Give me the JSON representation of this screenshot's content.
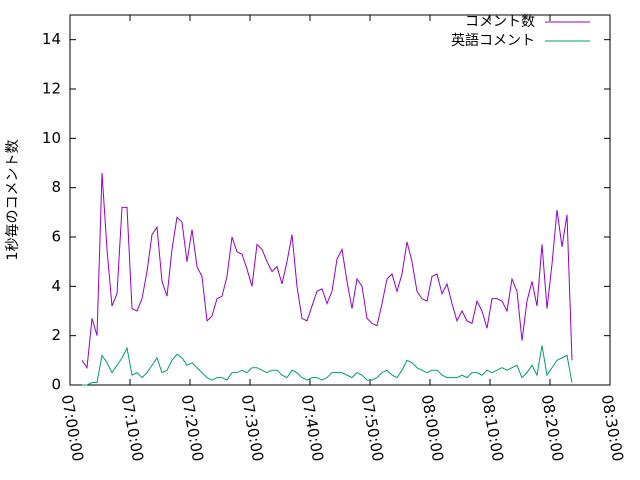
{
  "chart_data": {
    "type": "line",
    "ylabel": "1秒毎のコメント数",
    "x": [
      "07:02:00",
      "07:02:50",
      "07:03:40",
      "07:04:30",
      "07:05:20",
      "07:06:10",
      "07:07:00",
      "07:07:50",
      "07:08:40",
      "07:09:30",
      "07:10:20",
      "07:11:10",
      "07:12:00",
      "07:12:50",
      "07:13:40",
      "07:14:30",
      "07:15:20",
      "07:16:10",
      "07:17:00",
      "07:17:50",
      "07:18:40",
      "07:19:30",
      "07:20:20",
      "07:21:10",
      "07:22:00",
      "07:22:50",
      "07:23:40",
      "07:24:30",
      "07:25:20",
      "07:26:10",
      "07:27:00",
      "07:27:50",
      "07:28:40",
      "07:29:30",
      "07:30:20",
      "07:31:10",
      "07:32:00",
      "07:32:50",
      "07:33:40",
      "07:34:30",
      "07:35:20",
      "07:36:10",
      "07:37:00",
      "07:37:50",
      "07:38:40",
      "07:39:30",
      "07:40:20",
      "07:41:10",
      "07:42:00",
      "07:42:50",
      "07:43:40",
      "07:44:30",
      "07:45:20",
      "07:46:10",
      "07:47:00",
      "07:47:50",
      "07:48:40",
      "07:49:30",
      "07:50:20",
      "07:51:10",
      "07:52:00",
      "07:52:50",
      "07:53:40",
      "07:54:30",
      "07:55:20",
      "07:56:10",
      "07:57:00",
      "07:57:50",
      "07:58:40",
      "07:59:30",
      "08:00:20",
      "08:01:10",
      "08:02:00",
      "08:02:50",
      "08:03:40",
      "08:04:30",
      "08:05:20",
      "08:06:10",
      "08:07:00",
      "08:07:50",
      "08:08:40",
      "08:09:30",
      "08:10:20",
      "08:11:10",
      "08:12:00",
      "08:12:50",
      "08:13:40",
      "08:14:30",
      "08:15:20",
      "08:16:10",
      "08:17:00",
      "08:17:50",
      "08:18:40",
      "08:19:30",
      "08:20:20",
      "08:21:10",
      "08:22:00",
      "08:22:50",
      "08:23:40"
    ],
    "series": [
      {
        "name": "コメント数",
        "color": "#9400d3",
        "values": [
          1.0,
          0.7,
          2.7,
          2.0,
          8.6,
          5.5,
          3.2,
          3.7,
          7.2,
          7.2,
          3.1,
          3.0,
          3.5,
          4.6,
          6.1,
          6.4,
          4.2,
          3.6,
          5.5,
          6.8,
          6.6,
          5.0,
          6.3,
          4.8,
          4.4,
          2.6,
          2.8,
          3.5,
          3.6,
          4.4,
          6.0,
          5.4,
          5.3,
          4.7,
          4.0,
          5.7,
          5.5,
          5.0,
          4.6,
          4.8,
          4.1,
          5.0,
          6.1,
          4.0,
          2.7,
          2.6,
          3.2,
          3.8,
          3.9,
          3.3,
          3.8,
          5.1,
          5.5,
          4.2,
          3.1,
          4.3,
          4.0,
          2.7,
          2.5,
          2.4,
          3.3,
          4.3,
          4.5,
          3.8,
          4.5,
          5.8,
          5.0,
          3.8,
          3.5,
          3.4,
          4.4,
          4.5,
          3.7,
          4.1,
          3.3,
          2.6,
          3.0,
          2.6,
          2.5,
          3.4,
          3.0,
          2.3,
          3.5,
          3.5,
          3.4,
          3.0,
          4.3,
          3.8,
          1.8,
          3.4,
          4.2,
          3.2,
          5.7,
          3.1,
          4.9,
          7.1,
          5.6,
          6.9,
          1.0
        ]
      },
      {
        "name": "英語コメント",
        "color": "#009e73",
        "values": [
          0,
          0,
          0.1,
          0.1,
          1.2,
          0.9,
          0.5,
          0.8,
          1.1,
          1.5,
          0.4,
          0.5,
          0.3,
          0.5,
          0.8,
          1.1,
          0.5,
          0.6,
          1.0,
          1.25,
          1.1,
          0.8,
          0.9,
          0.7,
          0.5,
          0.3,
          0.2,
          0.3,
          0.3,
          0.2,
          0.5,
          0.5,
          0.6,
          0.5,
          0.7,
          0.7,
          0.6,
          0.5,
          0.6,
          0.6,
          0.4,
          0.3,
          0.6,
          0.5,
          0.3,
          0.2,
          0.3,
          0.3,
          0.2,
          0.3,
          0.5,
          0.5,
          0.5,
          0.4,
          0.3,
          0.5,
          0.4,
          0.2,
          0.2,
          0.3,
          0.5,
          0.6,
          0.4,
          0.3,
          0.6,
          1.0,
          0.9,
          0.7,
          0.6,
          0.5,
          0.6,
          0.6,
          0.4,
          0.3,
          0.3,
          0.3,
          0.4,
          0.3,
          0.5,
          0.5,
          0.4,
          0.6,
          0.5,
          0.6,
          0.7,
          0.6,
          0.7,
          0.8,
          0.3,
          0.5,
          0.8,
          0.4,
          1.6,
          0.4,
          0.7,
          1.0,
          1.1,
          1.2,
          0.1
        ]
      }
    ],
    "xlim": [
      "07:00:00",
      "08:30:00"
    ],
    "xticks": [
      "07:00:00",
      "07:10:00",
      "07:20:00",
      "07:30:00",
      "07:40:00",
      "07:50:00",
      "08:00:00",
      "08:10:00",
      "08:20:00",
      "08:30:00"
    ],
    "ylim": [
      0,
      15
    ],
    "yticks": [
      0,
      2,
      4,
      6,
      8,
      10,
      12,
      14
    ],
    "legend": "top right"
  }
}
